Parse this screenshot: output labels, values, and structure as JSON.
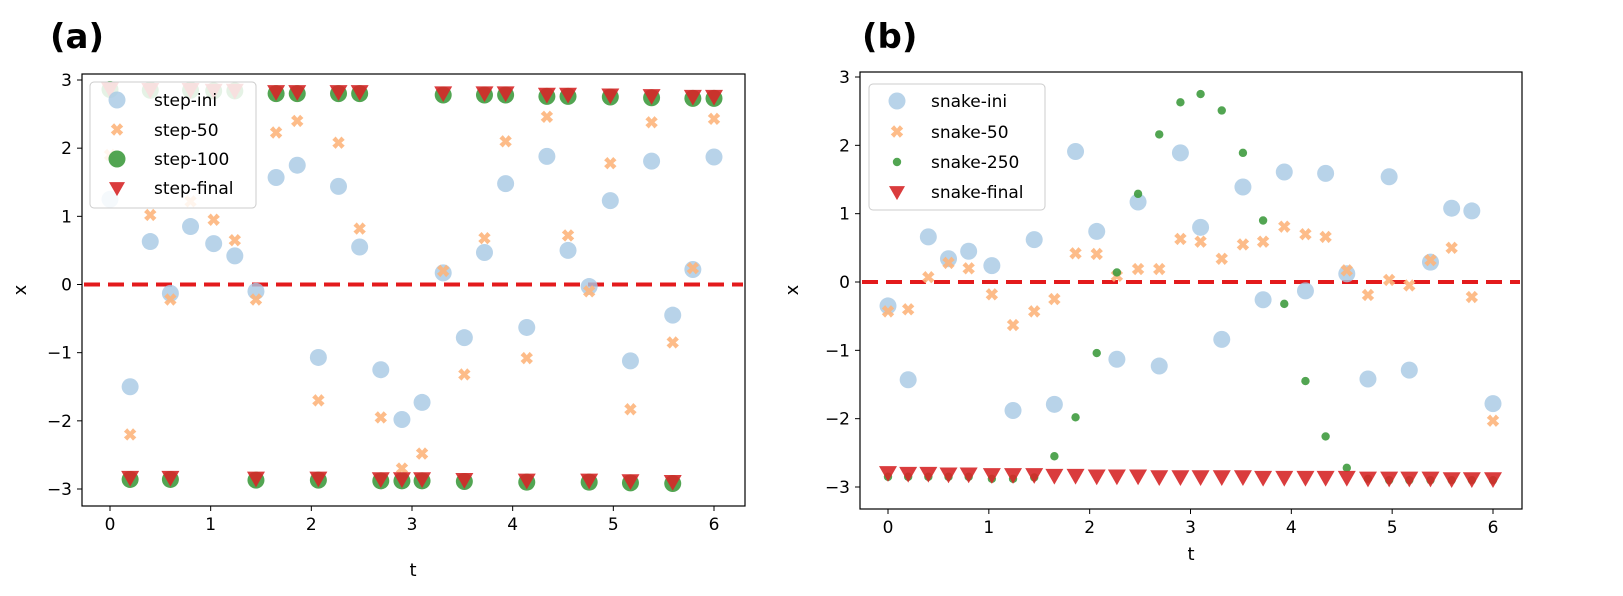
{
  "chart_data": [
    {
      "panel_label": "(a)",
      "type": "scatter",
      "xlabel": "t",
      "ylabel": "x",
      "xlim": [
        -0.3,
        6.3
      ],
      "ylim": [
        -3.2,
        3.1
      ],
      "xticks": [
        0,
        1,
        2,
        3,
        4,
        5,
        6
      ],
      "yticks": [
        -3,
        -2,
        -1,
        0,
        1,
        2,
        3
      ],
      "xtick_labels": [
        "0",
        "1",
        "2",
        "3",
        "4",
        "5",
        "6"
      ],
      "ytick_labels": [
        "−3",
        "−2",
        "−1",
        "0",
        "1",
        "2",
        "3"
      ],
      "reference_line": {
        "y": 0,
        "style": "dashed",
        "color": "#e31a1c"
      },
      "legend_position": "top-left",
      "series": [
        {
          "name": "step-ini",
          "marker": "circle",
          "color": "#a6c8e4",
          "x": [
            0,
            0.2,
            0.4,
            0.6,
            0.8,
            1.03,
            1.24,
            1.45,
            1.65,
            1.86,
            2.07,
            2.27,
            2.48,
            2.69,
            2.9,
            3.1,
            3.31,
            3.52,
            3.72,
            3.93,
            4.14,
            4.34,
            4.55,
            4.76,
            4.97,
            5.17,
            5.38,
            5.59,
            5.79,
            6.0
          ],
          "y": [
            1.25,
            -1.5,
            0.63,
            -0.13,
            0.85,
            0.6,
            0.42,
            -0.1,
            1.57,
            1.75,
            -1.07,
            1.44,
            0.55,
            -1.25,
            -1.98,
            -1.73,
            0.17,
            -0.78,
            0.47,
            1.48,
            -0.63,
            1.88,
            0.5,
            -0.03,
            1.23,
            -1.12,
            1.81,
            -0.45,
            0.22,
            1.87
          ]
        },
        {
          "name": "step-50",
          "marker": "x",
          "color": "#fdb57c",
          "x": [
            0,
            0.2,
            0.4,
            0.6,
            0.8,
            1.03,
            1.24,
            1.45,
            1.65,
            1.86,
            2.07,
            2.27,
            2.48,
            2.69,
            2.9,
            3.1,
            3.31,
            3.52,
            3.72,
            3.93,
            4.14,
            4.34,
            4.55,
            4.76,
            4.97,
            5.17,
            5.38,
            5.59,
            5.79,
            6.0
          ],
          "y": [
            1.9,
            -2.2,
            1.02,
            -0.22,
            1.22,
            0.95,
            0.65,
            -0.22,
            2.23,
            2.4,
            -1.7,
            2.08,
            0.82,
            -1.95,
            -2.7,
            -2.48,
            0.2,
            -1.32,
            0.68,
            2.1,
            -1.08,
            2.46,
            0.72,
            -0.1,
            1.78,
            -1.83,
            2.38,
            -0.85,
            0.24,
            2.43
          ]
        },
        {
          "name": "step-100",
          "marker": "circle",
          "color": "#3f9b3f",
          "x": [
            0,
            0.2,
            0.4,
            0.6,
            0.8,
            1.03,
            1.24,
            1.45,
            1.65,
            1.86,
            2.07,
            2.27,
            2.48,
            2.69,
            2.9,
            3.1,
            3.31,
            3.52,
            3.72,
            3.93,
            4.14,
            4.34,
            4.55,
            4.76,
            4.97,
            5.17,
            5.38,
            5.59,
            5.79,
            6.0
          ],
          "y": [
            2.86,
            -2.86,
            2.85,
            -2.86,
            2.85,
            2.84,
            2.84,
            -2.87,
            2.8,
            2.8,
            -2.87,
            2.8,
            2.8,
            -2.88,
            -2.88,
            -2.88,
            2.78,
            -2.89,
            2.78,
            2.78,
            -2.9,
            2.76,
            2.76,
            -2.9,
            2.75,
            -2.91,
            2.74,
            -2.92,
            2.73,
            2.73
          ]
        },
        {
          "name": "step-final",
          "marker": "triangle-down",
          "color": "#d62728",
          "x": [
            0,
            0.2,
            0.4,
            0.6,
            0.8,
            1.03,
            1.24,
            1.45,
            1.65,
            1.86,
            2.07,
            2.27,
            2.48,
            2.69,
            2.9,
            3.1,
            3.31,
            3.52,
            3.72,
            3.93,
            4.14,
            4.34,
            4.55,
            4.76,
            4.97,
            5.17,
            5.38,
            5.59,
            5.79,
            6.0
          ],
          "y": [
            2.86,
            -2.84,
            2.85,
            -2.84,
            2.85,
            2.84,
            2.84,
            -2.85,
            2.82,
            2.82,
            -2.85,
            2.82,
            2.82,
            -2.86,
            -2.86,
            -2.86,
            2.8,
            -2.87,
            2.8,
            2.8,
            -2.88,
            2.78,
            2.78,
            -2.88,
            2.77,
            -2.89,
            2.76,
            -2.9,
            2.75,
            2.75
          ]
        }
      ]
    },
    {
      "panel_label": "(b)",
      "type": "scatter",
      "xlabel": "t",
      "ylabel": "x",
      "xlim": [
        -0.3,
        6.3
      ],
      "ylim": [
        -3.2,
        3.1
      ],
      "xticks": [
        0,
        1,
        2,
        3,
        4,
        5,
        6
      ],
      "yticks": [
        -3,
        -2,
        -1,
        0,
        1,
        2,
        3
      ],
      "xtick_labels": [
        "0",
        "1",
        "2",
        "3",
        "4",
        "5",
        "6"
      ],
      "ytick_labels": [
        "−3",
        "−2",
        "−1",
        "0",
        "1",
        "2",
        "3"
      ],
      "reference_line": {
        "y": 0,
        "style": "dashed",
        "color": "#e31a1c"
      },
      "legend_position": "top-left",
      "series": [
        {
          "name": "snake-ini",
          "marker": "circle",
          "color": "#a6c8e4",
          "x": [
            0,
            0.2,
            0.4,
            0.6,
            0.8,
            1.03,
            1.24,
            1.45,
            1.65,
            1.86,
            2.07,
            2.27,
            2.48,
            2.69,
            2.9,
            3.1,
            3.31,
            3.52,
            3.72,
            3.93,
            4.14,
            4.34,
            4.55,
            4.76,
            4.97,
            5.17,
            5.38,
            5.59,
            5.79,
            6.0
          ],
          "y": [
            -0.35,
            -1.43,
            0.66,
            0.34,
            0.45,
            0.24,
            -1.88,
            0.62,
            -1.79,
            1.91,
            0.74,
            -1.13,
            1.17,
            -1.23,
            1.89,
            0.8,
            -0.84,
            1.39,
            -0.26,
            1.61,
            -0.13,
            1.59,
            0.12,
            -1.42,
            1.54,
            -1.29,
            0.29,
            1.08,
            1.04,
            -1.78
          ]
        },
        {
          "name": "snake-50",
          "marker": "x",
          "color": "#fdb57c",
          "x": [
            0,
            0.2,
            0.4,
            0.6,
            0.8,
            1.03,
            1.24,
            1.45,
            1.65,
            1.86,
            2.07,
            2.27,
            2.48,
            2.69,
            2.9,
            3.1,
            3.31,
            3.52,
            3.72,
            3.93,
            4.14,
            4.34,
            4.55,
            4.76,
            4.97,
            5.17,
            5.38,
            5.59,
            5.79,
            6.0
          ],
          "y": [
            -0.43,
            -0.4,
            0.07,
            0.28,
            0.2,
            -0.18,
            -0.63,
            -0.43,
            -0.25,
            0.42,
            0.41,
            0.09,
            0.19,
            0.19,
            0.63,
            0.59,
            0.34,
            0.55,
            0.59,
            0.81,
            0.7,
            0.66,
            0.17,
            -0.19,
            0.03,
            -0.05,
            0.32,
            0.5,
            -0.22,
            -2.03
          ]
        },
        {
          "name": "snake-250",
          "marker": "small-circle",
          "color": "#3f9b3f",
          "x": [
            0,
            0.2,
            0.4,
            0.6,
            0.8,
            1.03,
            1.24,
            1.45,
            1.65,
            1.86,
            2.07,
            2.27,
            2.48,
            2.69,
            2.9,
            3.1,
            3.31,
            3.52,
            3.72,
            3.93,
            4.14,
            4.34,
            4.55,
            4.76,
            4.97,
            5.17,
            5.38,
            5.59,
            5.79,
            6.0
          ],
          "y": [
            -2.85,
            -2.85,
            -2.85,
            -2.85,
            -2.85,
            -2.88,
            -2.88,
            -2.86,
            -2.55,
            -1.98,
            -1.04,
            0.14,
            1.29,
            2.16,
            2.63,
            2.75,
            2.51,
            1.89,
            0.9,
            -0.32,
            -1.45,
            -2.26,
            -2.72,
            -2.88,
            -2.9,
            -2.9,
            -2.9,
            -2.9,
            -2.9,
            -2.9
          ]
        },
        {
          "name": "snake-final",
          "marker": "triangle-down",
          "color": "#d62728",
          "x": [
            0,
            0.2,
            0.4,
            0.6,
            0.8,
            1.03,
            1.24,
            1.45,
            1.65,
            1.86,
            2.07,
            2.27,
            2.48,
            2.69,
            2.9,
            3.1,
            3.31,
            3.52,
            3.72,
            3.93,
            4.14,
            4.34,
            4.55,
            4.76,
            4.97,
            5.17,
            5.38,
            5.59,
            5.79,
            6.0
          ],
          "y": [
            -2.8,
            -2.81,
            -2.81,
            -2.82,
            -2.82,
            -2.83,
            -2.83,
            -2.83,
            -2.84,
            -2.84,
            -2.85,
            -2.85,
            -2.85,
            -2.86,
            -2.86,
            -2.86,
            -2.86,
            -2.86,
            -2.87,
            -2.87,
            -2.87,
            -2.87,
            -2.87,
            -2.88,
            -2.88,
            -2.88,
            -2.88,
            -2.89,
            -2.89,
            -2.89
          ]
        }
      ]
    }
  ]
}
